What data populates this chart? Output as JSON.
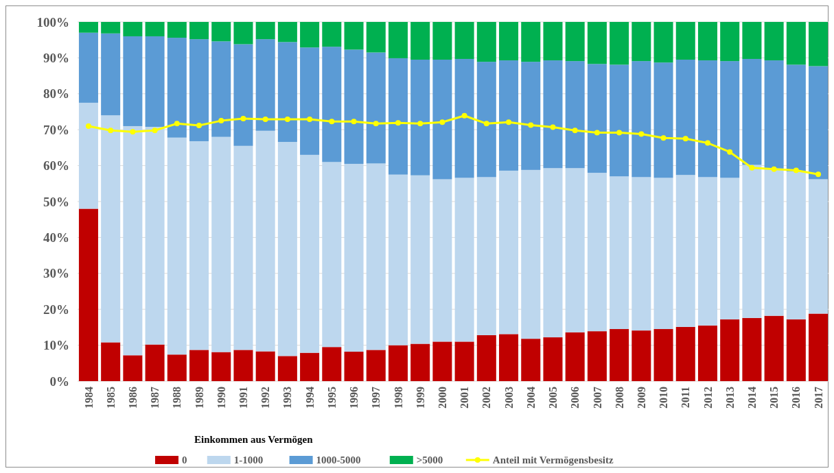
{
  "chart_data": {
    "type": "bar",
    "stacked": true,
    "legend_title": "Einkommen aus Vermögen",
    "legend": "bottom",
    "grid": "y",
    "marker": "circle",
    "categories": [
      "1984",
      "1985",
      "1986",
      "1987",
      "1988",
      "1989",
      "1990",
      "1991",
      "1992",
      "1993",
      "1994",
      "1995",
      "1996",
      "1997",
      "1998",
      "1999",
      "2000",
      "2001",
      "2002",
      "2003",
      "2004",
      "2005",
      "2006",
      "2007",
      "2008",
      "2009",
      "2010",
      "2011",
      "2012",
      "2013",
      "2014",
      "2015",
      "2016",
      "2017"
    ],
    "ylim": [
      0,
      100
    ],
    "yticks": [
      {
        "value": 0,
        "label": "0%"
      },
      {
        "value": 10,
        "label": "10%"
      },
      {
        "value": 20,
        "label": "20%"
      },
      {
        "value": 30,
        "label": "30%"
      },
      {
        "value": 40,
        "label": "40%"
      },
      {
        "value": 50,
        "label": "50%"
      },
      {
        "value": 60,
        "label": "60%"
      },
      {
        "value": 70,
        "label": "70%"
      },
      {
        "value": 80,
        "label": "80%"
      },
      {
        "value": 90,
        "label": "90%"
      },
      {
        "value": 100,
        "label": "100%"
      }
    ],
    "series": [
      {
        "name": "0",
        "color": "#c00000",
        "values": [
          48,
          10.8,
          7.2,
          10.2,
          7.4,
          8.7,
          8.1,
          8.7,
          8.3,
          7.0,
          7.9,
          9.5,
          8.2,
          8.7,
          10,
          10.4,
          11,
          11,
          12.8,
          13.1,
          11.8,
          12.2,
          13.6,
          13.9,
          14.5,
          14.1,
          14.5,
          15.1,
          15.5,
          17.2,
          17.6,
          18.2,
          17.2,
          18.8
        ]
      },
      {
        "name": "1-1000",
        "color": "#bdd7ee",
        "values": [
          29.5,
          63.2,
          63.8,
          60.6,
          60.4,
          58.1,
          59.9,
          56.8,
          61.4,
          59.6,
          55.1,
          51.5,
          52.3,
          51.9,
          47.5,
          46.9,
          45.2,
          45.6,
          44,
          45.5,
          47,
          47.1,
          45.7,
          44.1,
          42.5,
          42.7,
          42.1,
          42.3,
          41.3,
          39.4,
          42.6,
          41,
          41.2,
          37.4
        ]
      },
      {
        "name": "1000-5000",
        "color": "#5b9bd5",
        "values": [
          19.5,
          22.8,
          25,
          25.2,
          27.8,
          28.4,
          26.6,
          28.3,
          25.5,
          27.8,
          29.9,
          32.1,
          31.8,
          30.9,
          32.4,
          32.2,
          33.3,
          33.1,
          32.1,
          30.7,
          30.1,
          30,
          29.8,
          30.3,
          31.1,
          32.3,
          32.1,
          32.1,
          32.5,
          32.5,
          29.5,
          30.1,
          29.7,
          31.5
        ]
      },
      {
        "name": ">5000",
        "color": "#00b050",
        "values": [
          3,
          3.2,
          4,
          4,
          4.4,
          4.8,
          5.4,
          6.2,
          4.8,
          5.6,
          7.1,
          6.9,
          7.7,
          8.5,
          10.1,
          10.5,
          10.5,
          10.3,
          11.1,
          10.7,
          11.1,
          10.7,
          10.9,
          11.7,
          11.9,
          10.9,
          11.3,
          10.5,
          10.7,
          10.9,
          10.3,
          10.7,
          11.9,
          12.3
        ]
      },
      {
        "name": "Anteil mit Vermögensbesitz",
        "type": "line",
        "color": "#ffff00",
        "values": [
          71,
          69.8,
          69.4,
          69.8,
          71.7,
          71.2,
          72.5,
          73.1,
          72.9,
          72.9,
          72.9,
          72.3,
          72.3,
          71.7,
          71.9,
          71.7,
          72.1,
          73.9,
          71.7,
          72.1,
          71.3,
          70.7,
          69.8,
          69.2,
          69.2,
          68.8,
          67.7,
          67.5,
          66.3,
          63.8,
          59.4,
          59.0,
          58.7,
          57.6
        ]
      }
    ]
  }
}
